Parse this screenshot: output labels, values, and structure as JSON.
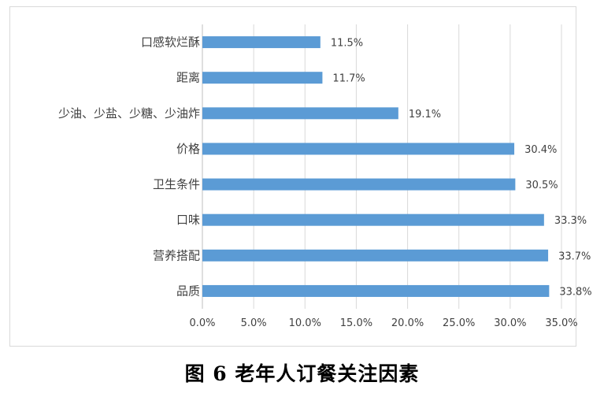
{
  "chart_data": {
    "type": "bar",
    "orientation": "horizontal",
    "categories": [
      "口感软烂酥",
      "距离",
      "少油、少盐、少糖、少油炸",
      "价格",
      "卫生条件",
      "口味",
      "营养搭配",
      "品质"
    ],
    "values": [
      11.5,
      11.7,
      19.1,
      30.4,
      30.5,
      33.3,
      33.7,
      33.8
    ],
    "data_labels": [
      "11.5%",
      "11.7%",
      "19.1%",
      "30.4%",
      "30.5%",
      "33.3%",
      "33.7%",
      "33.8%"
    ],
    "xticks": [
      0,
      5,
      10,
      15,
      20,
      25,
      30,
      35
    ],
    "xtick_labels": [
      "0.0%",
      "5.0%",
      "10.0%",
      "15.0%",
      "20.0%",
      "25.0%",
      "30.0%",
      "35.0%"
    ],
    "xlim": [
      0,
      35
    ],
    "grid": true,
    "legend": "none",
    "bar_color": "#5b9bd5"
  },
  "caption": "图 6  老年人订餐关注因素"
}
